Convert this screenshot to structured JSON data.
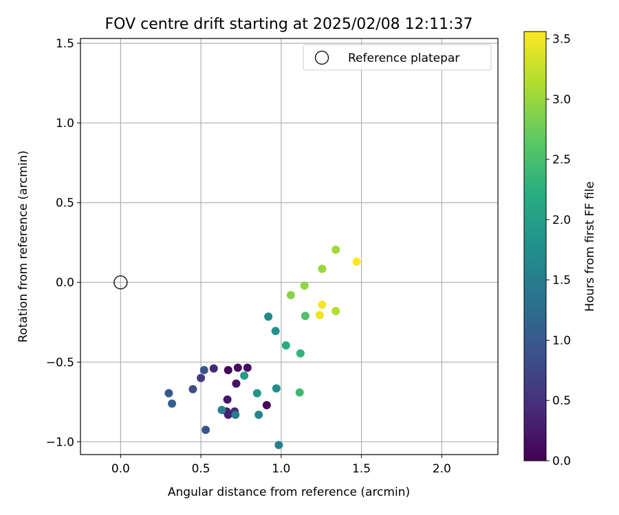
{
  "chart_data": {
    "type": "scatter",
    "title": "FOV centre drift starting at 2025/02/08 12:11:37",
    "xlabel": "Angular distance from reference (arcmin)",
    "ylabel": "Rotation from reference (arcmin)",
    "xlim": [
      -0.25,
      2.35
    ],
    "ylim": [
      -1.08,
      1.53
    ],
    "xticks": [
      0.0,
      0.5,
      1.0,
      1.5,
      2.0
    ],
    "xtick_labels": [
      "0.0",
      "0.5",
      "1.0",
      "1.5",
      "2.0"
    ],
    "yticks": [
      -1.0,
      -0.5,
      0.0,
      0.5,
      1.0,
      1.5
    ],
    "ytick_labels": [
      "−1.0",
      "−0.5",
      "0.0",
      "0.5",
      "1.0",
      "1.5"
    ],
    "grid": true,
    "legend": {
      "placement": "upper right",
      "entries": [
        "Reference platepar"
      ]
    },
    "reference_point": {
      "name": "Reference platepar",
      "x": 0.0,
      "y": 0.0
    },
    "colorbar": {
      "label": "Hours from first FF file",
      "min": 0.0,
      "max": 3.56,
      "colormap": "viridis",
      "ticks": [
        0.0,
        0.5,
        1.0,
        1.5,
        2.0,
        2.5,
        3.0,
        3.5
      ],
      "tick_labels": [
        "0.0",
        "0.5",
        "1.0",
        "1.5",
        "2.0",
        "2.5",
        "3.0",
        "3.5"
      ]
    },
    "points": [
      {
        "x": 0.67,
        "y": -0.55,
        "h": 0.05
      },
      {
        "x": 0.73,
        "y": -0.535,
        "h": 0.12
      },
      {
        "x": 0.79,
        "y": -0.535,
        "h": 0.1
      },
      {
        "x": 0.72,
        "y": -0.635,
        "h": 0.18
      },
      {
        "x": 0.91,
        "y": -0.77,
        "h": 0.05
      },
      {
        "x": 0.665,
        "y": -0.735,
        "h": 0.22
      },
      {
        "x": 0.66,
        "y": -0.81,
        "h": 0.28
      },
      {
        "x": 0.67,
        "y": -0.83,
        "h": 0.3
      },
      {
        "x": 0.71,
        "y": -0.81,
        "h": 0.35
      },
      {
        "x": 0.58,
        "y": -0.54,
        "h": 0.4
      },
      {
        "x": 0.5,
        "y": -0.6,
        "h": 0.6
      },
      {
        "x": 0.52,
        "y": -0.55,
        "h": 0.95
      },
      {
        "x": 0.45,
        "y": -0.67,
        "h": 0.85
      },
      {
        "x": 0.3,
        "y": -0.695,
        "h": 1.0
      },
      {
        "x": 0.32,
        "y": -0.76,
        "h": 1.05
      },
      {
        "x": 0.53,
        "y": -0.925,
        "h": 0.95
      },
      {
        "x": 0.63,
        "y": -0.8,
        "h": 1.55
      },
      {
        "x": 0.715,
        "y": -0.83,
        "h": 1.5
      },
      {
        "x": 0.86,
        "y": -0.83,
        "h": 1.6
      },
      {
        "x": 0.985,
        "y": -1.02,
        "h": 1.55
      },
      {
        "x": 0.85,
        "y": -0.695,
        "h": 1.85
      },
      {
        "x": 0.97,
        "y": -0.665,
        "h": 1.75
      },
      {
        "x": 0.77,
        "y": -0.585,
        "h": 1.95
      },
      {
        "x": 0.92,
        "y": -0.215,
        "h": 1.7
      },
      {
        "x": 0.965,
        "y": -0.305,
        "h": 1.8
      },
      {
        "x": 1.03,
        "y": -0.395,
        "h": 2.2
      },
      {
        "x": 1.12,
        "y": -0.445,
        "h": 2.3
      },
      {
        "x": 1.115,
        "y": -0.69,
        "h": 2.4
      },
      {
        "x": 1.15,
        "y": -0.21,
        "h": 2.55
      },
      {
        "x": 1.06,
        "y": -0.08,
        "h": 2.9
      },
      {
        "x": 1.145,
        "y": -0.02,
        "h": 2.95
      },
      {
        "x": 1.255,
        "y": 0.085,
        "h": 3.0
      },
      {
        "x": 1.34,
        "y": 0.205,
        "h": 3.05
      },
      {
        "x": 1.34,
        "y": -0.18,
        "h": 3.15
      },
      {
        "x": 1.255,
        "y": -0.14,
        "h": 3.5
      },
      {
        "x": 1.24,
        "y": -0.205,
        "h": 3.48
      },
      {
        "x": 1.47,
        "y": 0.13,
        "h": 3.56
      }
    ]
  }
}
